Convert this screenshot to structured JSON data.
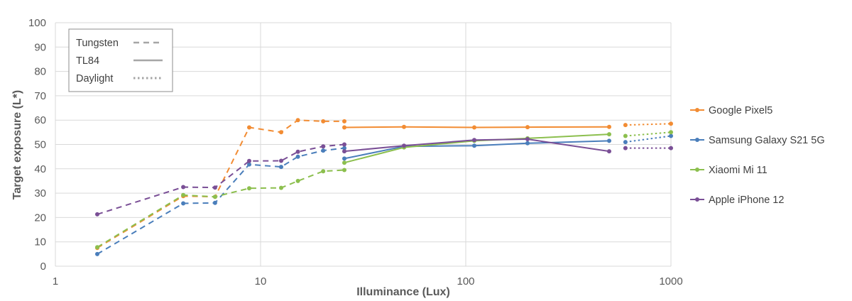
{
  "chart_data": {
    "type": "line",
    "x_scale": "log",
    "xlabel": "Illuminance (Lux)",
    "ylabel": "Target exposure (L*)",
    "xlim": [
      1,
      1000
    ],
    "ylim": [
      0,
      100
    ],
    "x_ticks": [
      1,
      10,
      100,
      1000
    ],
    "x_tick_labels": [
      "1",
      "10",
      "100",
      "1000"
    ],
    "y_ticks": [
      0,
      10,
      20,
      30,
      40,
      50,
      60,
      70,
      80,
      90,
      100
    ],
    "y_tick_labels": [
      "0",
      "10",
      "20",
      "30",
      "40",
      "50",
      "60",
      "70",
      "80",
      "90",
      "100"
    ],
    "grid": {
      "horizontal": true,
      "vertical": true
    },
    "style_legend": {
      "position": "top-left",
      "entries": [
        {
          "label": "Tungsten",
          "style": "dashed"
        },
        {
          "label": "TL84",
          "style": "solid"
        },
        {
          "label": "Daylight",
          "style": "dotted"
        }
      ]
    },
    "series_legend": {
      "position": "right"
    },
    "series": [
      {
        "name": "Google Pixel5",
        "color": "#F28C33",
        "segments": {
          "tungsten": {
            "x": [
              1.6,
              4.2,
              6,
              8.8,
              12.6,
              15.2,
              20.2,
              25.6
            ],
            "y": [
              7.5,
              28.8,
              28.5,
              57,
              55,
              60,
              59.5,
              59.5
            ]
          },
          "tl84": {
            "x": [
              25.6,
              50,
              110,
              200,
              500
            ],
            "y": [
              57,
              57.2,
              57,
              57.1,
              57.2
            ]
          },
          "daylight": {
            "x": [
              600,
              1000
            ],
            "y": [
              58,
              58.5
            ]
          }
        }
      },
      {
        "name": "Samsung Galaxy S21 5G",
        "color": "#4A7EBB",
        "segments": {
          "tungsten": {
            "x": [
              1.6,
              4.2,
              6,
              8.8,
              12.6,
              15.2,
              20.2,
              25.6
            ],
            "y": [
              5,
              25.8,
              26,
              41.8,
              40.8,
              45,
              47.5,
              48.5
            ]
          },
          "tl84": {
            "x": [
              25.6,
              50,
              110,
              200,
              500
            ],
            "y": [
              44.2,
              49.2,
              49.5,
              50.5,
              51.5
            ]
          },
          "daylight": {
            "x": [
              600,
              1000
            ],
            "y": [
              51,
              53.5
            ]
          }
        }
      },
      {
        "name": "Xiaomi Mi 11",
        "color": "#8CBF4E",
        "segments": {
          "tungsten": {
            "x": [
              1.6,
              4.2,
              6,
              8.8,
              12.6,
              15.2,
              20.2,
              25.6
            ],
            "y": [
              7.8,
              29.2,
              28.5,
              32,
              32.2,
              35,
              39,
              39.5
            ]
          },
          "tl84": {
            "x": [
              25.6,
              50,
              110,
              200,
              500
            ],
            "y": [
              42.5,
              48.8,
              51.5,
              52.5,
              54.2
            ]
          },
          "daylight": {
            "x": [
              600,
              1000
            ],
            "y": [
              53.5,
              55
            ]
          }
        }
      },
      {
        "name": "Apple iPhone 12",
        "color": "#7A4F96",
        "segments": {
          "tungsten": {
            "x": [
              1.6,
              4.2,
              6,
              8.8,
              12.6,
              15.2,
              20.2,
              25.6
            ],
            "y": [
              21.3,
              32.5,
              32.3,
              43.2,
              43.3,
              47,
              49.2,
              50
            ]
          },
          "tl84": {
            "x": [
              25.6,
              50,
              110,
              200,
              500
            ],
            "y": [
              47.2,
              49.5,
              51.8,
              52.2,
              47.2
            ]
          },
          "daylight": {
            "x": [
              600,
              1000
            ],
            "y": [
              48.5,
              48.5
            ]
          }
        }
      }
    ]
  }
}
